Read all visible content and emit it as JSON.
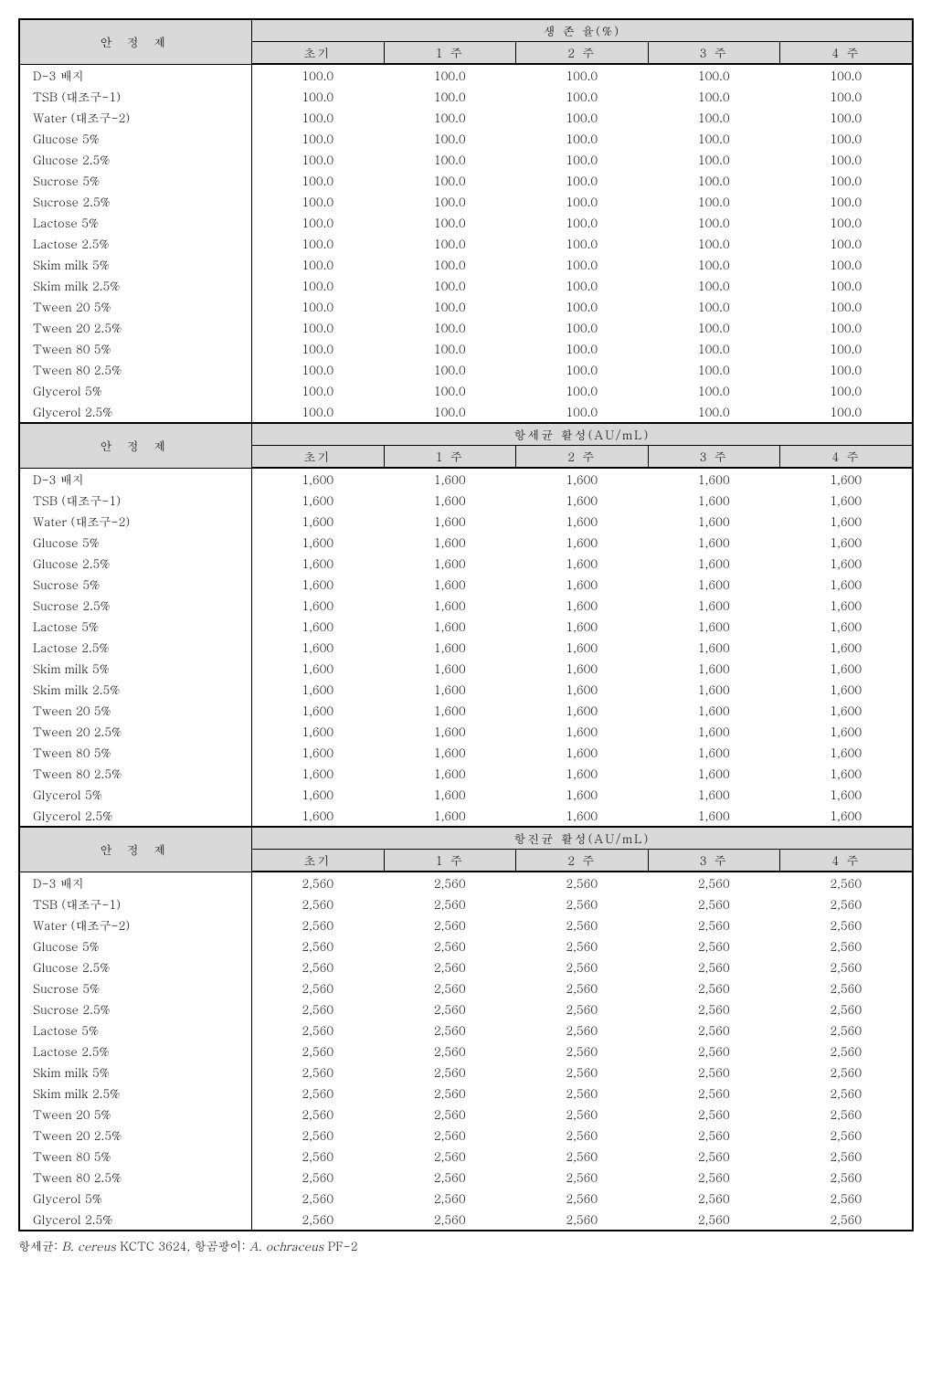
{
  "labels": {
    "stabilizer": "안 정 제",
    "footnote_prefix_bacteria": "항세균: ",
    "footnote_bacteria_species": "B. cereus",
    "footnote_bacteria_strain": " KCTC 3624, ",
    "footnote_prefix_fungi": "항곰팡이: ",
    "footnote_fungi_species": "A. ochraceus",
    "footnote_fungi_strain": " PF-2"
  },
  "row_labels": [
    "D-3 배지",
    "TSB (대조구-1)",
    "Water (대조구-2)",
    "Glucose 5%",
    "Glucose 2.5%",
    "Sucrose 5%",
    "Sucrose 2.5%",
    "Lactose 5%",
    "Lactose 2.5%",
    "Skim milk 5%",
    "Skim milk 2.5%",
    "Tween 20 5%",
    "Tween 20 2.5%",
    "Tween 80 5%",
    "Tween 80 2.5%",
    "Glycerol 5%",
    "Glycerol 2.5%"
  ],
  "time_cols": [
    "초기",
    "1 주",
    "2 주",
    "3 주",
    "4 주"
  ],
  "sections": [
    {
      "group_title": "생 존 율(%)",
      "value": "100.0"
    },
    {
      "group_title": "항세균 활성(AU/mL)",
      "value": "1,600"
    },
    {
      "group_title": "항진균 활성(AU/mL)",
      "value": "2,560"
    }
  ]
}
